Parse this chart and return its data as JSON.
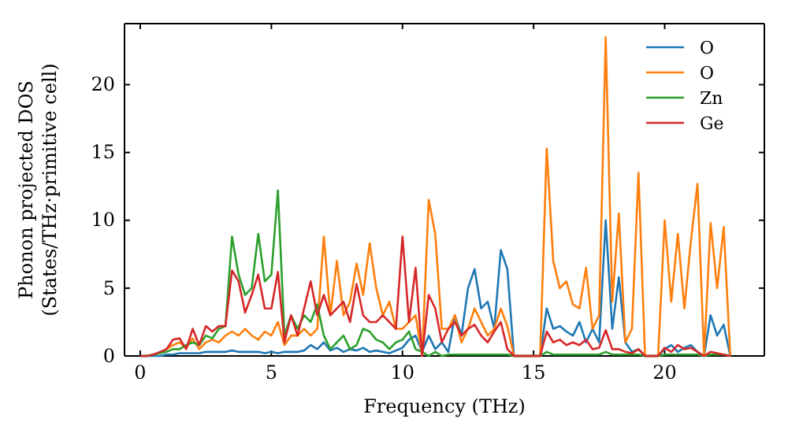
{
  "chart_data": {
    "type": "line",
    "xlabel": "Frequency (THz)",
    "ylabel": "Phonon projected DOS\n(States/THz·primitive cell)",
    "xlim": [
      -0.6,
      23.8
    ],
    "ylim": [
      0,
      24.5
    ],
    "xticks": [
      0,
      5,
      10,
      15,
      20
    ],
    "yticks": [
      0,
      5,
      10,
      15,
      20
    ],
    "grid": false,
    "legend": "top right",
    "x": [
      0,
      0.25,
      0.5,
      0.75,
      1,
      1.25,
      1.5,
      1.75,
      2,
      2.25,
      2.5,
      2.75,
      3,
      3.25,
      3.5,
      3.75,
      4,
      4.25,
      4.5,
      4.75,
      5,
      5.25,
      5.5,
      5.75,
      6,
      6.25,
      6.5,
      6.75,
      7,
      7.25,
      7.5,
      7.75,
      8,
      8.25,
      8.5,
      8.75,
      9,
      9.25,
      9.5,
      9.75,
      10,
      10.25,
      10.5,
      10.75,
      11,
      11.25,
      11.5,
      11.75,
      12,
      12.25,
      12.5,
      12.75,
      13,
      13.25,
      13.5,
      13.75,
      14,
      14.25,
      14.5,
      14.75,
      15,
      15.25,
      15.5,
      15.75,
      16,
      16.25,
      16.5,
      16.75,
      17,
      17.25,
      17.5,
      17.75,
      18,
      18.25,
      18.5,
      18.75,
      19,
      19.25,
      19.5,
      19.75,
      20,
      20.25,
      20.5,
      20.75,
      21,
      21.25,
      21.5,
      21.75,
      22,
      22.25,
      22.5
    ],
    "series": [
      {
        "name": "O",
        "color": "#1f77b4",
        "values": [
          0,
          0,
          0,
          0,
          0.1,
          0.1,
          0.2,
          0.2,
          0.2,
          0.2,
          0.3,
          0.3,
          0.3,
          0.3,
          0.4,
          0.3,
          0.3,
          0.3,
          0.3,
          0.2,
          0.3,
          0.2,
          0.3,
          0.3,
          0.3,
          0.4,
          0.8,
          0.5,
          1.0,
          0.4,
          0.6,
          0.3,
          0.5,
          0.4,
          0.6,
          0.3,
          0.4,
          0.3,
          0.2,
          0.4,
          0.6,
          1.2,
          1.5,
          0.3,
          1.5,
          0.5,
          1.0,
          0.3,
          3.0,
          1.5,
          5.0,
          6.4,
          3.5,
          4.0,
          2.0,
          7.8,
          6.4,
          0,
          0,
          0,
          0,
          0,
          3.5,
          2.0,
          2.2,
          1.8,
          1.5,
          2.5,
          1.0,
          2.0,
          1.0,
          10.0,
          2.0,
          5.8,
          1.0,
          0.3,
          0.5,
          0,
          0,
          0,
          0.5,
          0.8,
          0.3,
          0.6,
          0.8,
          0.3,
          0,
          3.0,
          1.5,
          2.3,
          0
        ]
      },
      {
        "name": "O",
        "color": "#ff7f0e",
        "values": [
          null,
          null,
          null,
          0.2,
          0.5,
          0.8,
          1.0,
          0.6,
          1.3,
          0.5,
          1.0,
          1.2,
          1.0,
          1.5,
          1.8,
          1.5,
          2.0,
          1.5,
          1.2,
          1.8,
          1.5,
          2.5,
          0.8,
          1.5,
          1.5,
          2.0,
          1.5,
          2.0,
          8.8,
          3.0,
          7.0,
          3.0,
          4.0,
          6.8,
          4.5,
          8.3,
          5.0,
          3.0,
          4.0,
          2.0,
          2.0,
          2.5,
          3.0,
          0,
          11.5,
          9.0,
          2.0,
          2.0,
          3.0,
          1.0,
          2.0,
          3.5,
          2.5,
          1.5,
          2.0,
          3.5,
          2.2,
          0,
          0,
          0,
          0,
          0,
          15.3,
          7.0,
          5.0,
          5.5,
          3.8,
          3.5,
          6.5,
          2.0,
          3.0,
          23.5,
          4.0,
          10.5,
          1.0,
          2.0,
          13.5,
          0,
          0,
          0,
          10.0,
          4.0,
          9.0,
          3.5,
          8.5,
          12.7,
          0,
          9.8,
          5.0,
          9.5,
          0
        ]
      },
      {
        "name": "Zn",
        "color": "#2ca02c",
        "values": [
          0,
          0,
          0.1,
          0.2,
          0.3,
          0.5,
          0.5,
          0.8,
          1.0,
          0.8,
          1.5,
          1.3,
          2.0,
          2.2,
          8.8,
          6.0,
          4.5,
          5.0,
          9.0,
          5.5,
          6.0,
          12.2,
          1.5,
          3.0,
          2.0,
          3.0,
          2.5,
          3.8,
          1.5,
          0.5,
          1.0,
          1.5,
          0.5,
          0.8,
          2.0,
          1.8,
          1.2,
          1.0,
          0.5,
          1.0,
          1.2,
          1.8,
          0.5,
          0.3,
          0,
          0.3,
          0,
          0.1,
          0.1,
          0.1,
          0.1,
          0.1,
          0.1,
          0.1,
          0.1,
          0.1,
          0.1,
          0,
          0,
          0,
          0,
          0,
          0.3,
          0.1,
          0.1,
          0.1,
          0.1,
          0.1,
          0.1,
          0.1,
          0.1,
          0.3,
          0.1,
          0.1,
          0.1,
          0.1,
          0.1,
          0,
          0,
          0,
          0.1,
          0.1,
          0.1,
          0.1,
          0.1,
          0.1,
          0,
          0.1,
          0.1,
          0.1,
          0
        ]
      },
      {
        "name": "Ge",
        "color": "#d62728",
        "values": [
          0,
          0,
          0.1,
          0.3,
          0.5,
          1.2,
          1.3,
          0.5,
          2.0,
          0.8,
          2.2,
          1.8,
          2.2,
          2.2,
          6.3,
          5.5,
          3.2,
          4.5,
          6.0,
          3.5,
          3.5,
          6.2,
          1.0,
          3.0,
          1.5,
          3.5,
          5.5,
          3.0,
          4.5,
          3.0,
          3.5,
          4.0,
          2.5,
          5.3,
          3.0,
          2.5,
          2.5,
          3.0,
          2.5,
          2.0,
          8.8,
          2.5,
          6.5,
          0,
          4.5,
          3.5,
          1.0,
          2.0,
          2.5,
          1.5,
          2.0,
          2.3,
          1.5,
          1.0,
          1.8,
          2.5,
          0.5,
          0,
          0,
          0,
          0,
          0,
          1.8,
          1.0,
          1.2,
          0.8,
          1.0,
          0.8,
          1.2,
          0.5,
          0.6,
          1.9,
          0.5,
          0.5,
          0.3,
          0.2,
          0.5,
          0,
          0,
          0,
          0.6,
          0.3,
          0.8,
          0.5,
          0.6,
          0.3,
          0,
          0.3,
          0.2,
          0.1,
          0
        ]
      }
    ]
  }
}
